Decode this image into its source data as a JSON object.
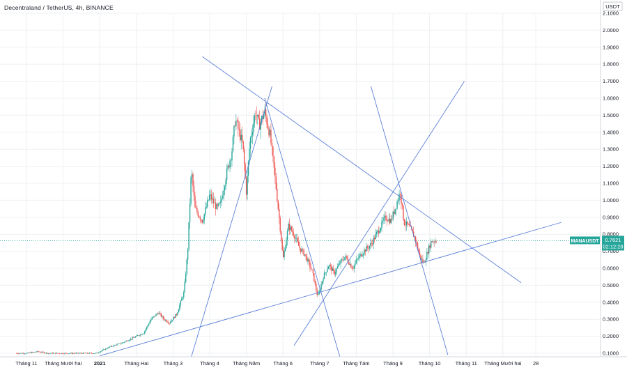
{
  "header": {
    "title": "Decentraland / TetherUS, 4h, BINANCE"
  },
  "colors": {
    "up": "#26a69a",
    "down": "#ef5350",
    "trendline": "#5b7fd6",
    "grid": "#eef0f3",
    "price_label": "#26a69a"
  },
  "price_tag": {
    "symbol": "MANAUSDT",
    "price": "0.7621",
    "countdown": "02:12:28"
  },
  "chart_data": {
    "type": "candlestick",
    "title": "Decentraland / TetherUS, 4h, BINANCE",
    "y_unit": "USDT",
    "ylim": [
      0.08,
      2.18
    ],
    "yticks": [
      "0.1000",
      "0.2000",
      "0.3000",
      "0.4000",
      "0.5000",
      "0.6000",
      "0.7000",
      "0.8000",
      "0.9000",
      "1.0000",
      "1.1000",
      "1.2000",
      "1.3000",
      "1.4000",
      "1.5000",
      "1.6000",
      "1.7000",
      "1.8000",
      "1.9000",
      "2.0000",
      "2.1000"
    ],
    "x_labels": [
      {
        "label": "Tháng 11",
        "pos": 0.0,
        "bold": false
      },
      {
        "label": "Tháng Mười hai",
        "pos": 1.0,
        "bold": false
      },
      {
        "label": "2021",
        "pos": 2.0,
        "bold": true
      },
      {
        "label": "Tháng Hai",
        "pos": 3.0,
        "bold": false
      },
      {
        "label": "Tháng 3",
        "pos": 4.0,
        "bold": false
      },
      {
        "label": "Tháng 4",
        "pos": 5.0,
        "bold": false
      },
      {
        "label": "Tháng Năm",
        "pos": 6.0,
        "bold": false
      },
      {
        "label": "Tháng 6",
        "pos": 7.0,
        "bold": false
      },
      {
        "label": "Tháng 7",
        "pos": 8.0,
        "bold": false
      },
      {
        "label": "Tháng Tám",
        "pos": 9.0,
        "bold": false
      },
      {
        "label": "Tháng 9",
        "pos": 10.0,
        "bold": false
      },
      {
        "label": "Tháng 10",
        "pos": 11.0,
        "bold": false
      },
      {
        "label": "Tháng 11",
        "pos": 12.0,
        "bold": false
      },
      {
        "label": "Tháng Mười hai",
        "pos": 13.0,
        "bold": false
      },
      {
        "label": "28",
        "pos": 13.9,
        "bold": false
      }
    ],
    "current_price": 0.7621,
    "price_path": [
      [
        -0.3,
        0.1
      ],
      [
        0.0,
        0.1
      ],
      [
        0.3,
        0.11
      ],
      [
        0.6,
        0.1
      ],
      [
        1.0,
        0.1
      ],
      [
        1.5,
        0.1
      ],
      [
        1.9,
        0.1
      ],
      [
        2.1,
        0.12
      ],
      [
        2.3,
        0.14
      ],
      [
        2.6,
        0.16
      ],
      [
        2.9,
        0.19
      ],
      [
        3.2,
        0.22
      ],
      [
        3.4,
        0.3
      ],
      [
        3.6,
        0.34
      ],
      [
        3.75,
        0.3
      ],
      [
        3.9,
        0.28
      ],
      [
        4.1,
        0.33
      ],
      [
        4.3,
        0.46
      ],
      [
        4.4,
        0.7
      ],
      [
        4.5,
        1.18
      ],
      [
        4.6,
        0.95
      ],
      [
        4.8,
        0.88
      ],
      [
        5.0,
        1.03
      ],
      [
        5.2,
        0.95
      ],
      [
        5.3,
        0.98
      ],
      [
        5.45,
        1.15
      ],
      [
        5.6,
        1.28
      ],
      [
        5.7,
        1.48
      ],
      [
        5.8,
        1.4
      ],
      [
        5.9,
        1.33
      ],
      [
        6.0,
        1.05
      ],
      [
        6.1,
        1.35
      ],
      [
        6.25,
        1.52
      ],
      [
        6.35,
        1.44
      ],
      [
        6.5,
        1.52
      ],
      [
        6.65,
        1.38
      ],
      [
        6.8,
        1.1
      ],
      [
        6.95,
        0.78
      ],
      [
        7.0,
        0.65
      ],
      [
        7.15,
        0.85
      ],
      [
        7.3,
        0.8
      ],
      [
        7.45,
        0.72
      ],
      [
        7.6,
        0.68
      ],
      [
        7.8,
        0.58
      ],
      [
        7.95,
        0.43
      ],
      [
        8.1,
        0.55
      ],
      [
        8.25,
        0.62
      ],
      [
        8.4,
        0.57
      ],
      [
        8.55,
        0.63
      ],
      [
        8.7,
        0.67
      ],
      [
        8.9,
        0.6
      ],
      [
        9.05,
        0.66
      ],
      [
        9.2,
        0.7
      ],
      [
        9.4,
        0.74
      ],
      [
        9.6,
        0.82
      ],
      [
        9.8,
        0.9
      ],
      [
        9.95,
        0.88
      ],
      [
        10.1,
        0.98
      ],
      [
        10.2,
        1.05
      ],
      [
        10.3,
        0.87
      ],
      [
        10.45,
        0.84
      ],
      [
        10.6,
        0.78
      ],
      [
        10.75,
        0.66
      ],
      [
        10.85,
        0.63
      ],
      [
        10.95,
        0.7
      ],
      [
        11.05,
        0.76
      ],
      [
        11.2,
        0.7621
      ]
    ],
    "trendlines": [
      {
        "from": [
          4.8,
          1.845
        ],
        "to": [
          13.5,
          0.515
        ]
      },
      {
        "from": [
          4.5,
          0.08
        ],
        "to": [
          6.7,
          1.67
        ]
      },
      {
        "from": [
          6.5,
          1.6
        ],
        "to": [
          8.55,
          0.08
        ]
      },
      {
        "from": [
          2.0,
          0.085
        ],
        "to": [
          14.6,
          0.87
        ]
      },
      {
        "from": [
          7.3,
          0.145
        ],
        "to": [
          11.95,
          1.7
        ]
      },
      {
        "from": [
          9.4,
          1.67
        ],
        "to": [
          11.5,
          0.09
        ]
      }
    ],
    "grid": true,
    "legend": "none"
  }
}
